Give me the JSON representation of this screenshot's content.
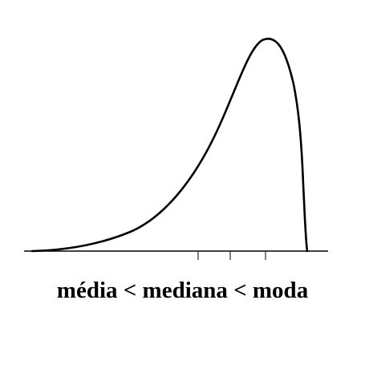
{
  "caption": "média < mediana < moda",
  "colors": {
    "curve": "#000000",
    "axis": "#000000",
    "background": "#ffffff"
  },
  "markers": [
    "média",
    "mediana",
    "moda"
  ]
}
